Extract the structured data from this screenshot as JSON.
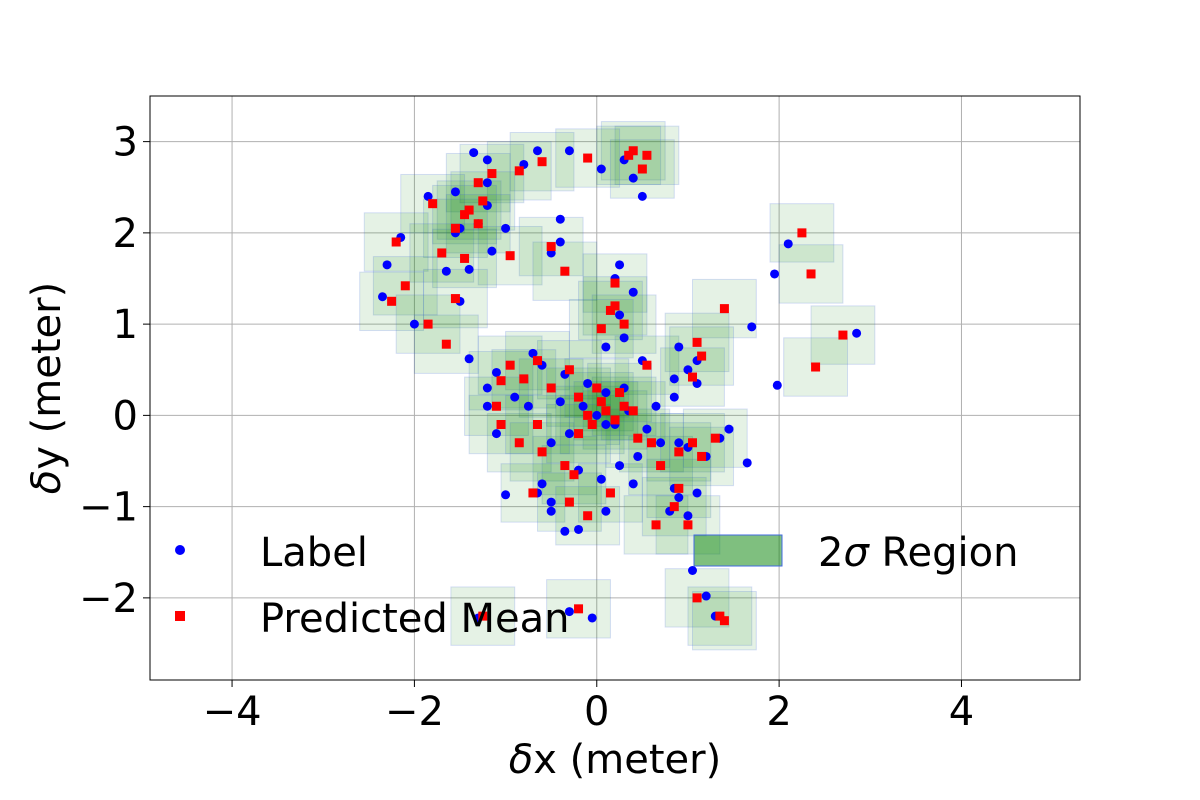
{
  "chart_data": {
    "type": "scatter",
    "xlabel_prefix": "δ",
    "xlabel_text": "x (meter)",
    "ylabel_prefix": "δ",
    "ylabel_text": "y (meter)",
    "xlim": [
      -4.9,
      5.3
    ],
    "ylim": [
      -2.9,
      3.5
    ],
    "xticks": [
      -4,
      -2,
      0,
      2,
      4
    ],
    "yticks": [
      -2,
      -1,
      0,
      1,
      2,
      3
    ],
    "xtick_labels": [
      "−4",
      "−2",
      "0",
      "2",
      "4"
    ],
    "ytick_labels": [
      "−2",
      "−1",
      "0",
      "1",
      "2",
      "3"
    ],
    "grid": true,
    "colors": {
      "label": "#0000ff",
      "mean": "#ff0000",
      "region_fill": "#008000",
      "region_edge": "#4169e1"
    },
    "legend": {
      "label_series": "Label",
      "mean_series": "Predicted Mean",
      "region_prefix": "2",
      "region_sigma": "σ",
      "region_suffix": " Region"
    },
    "region_halfsize": [
      0.35,
      0.32
    ],
    "series": [
      {
        "name": "Label",
        "marker": "circle",
        "points": [
          [
            -0.3,
            2.9
          ],
          [
            -0.65,
            2.9
          ],
          [
            0.05,
            2.7
          ],
          [
            0.4,
            2.6
          ],
          [
            0.5,
            2.4
          ],
          [
            0.3,
            2.8
          ],
          [
            -1.35,
            2.88
          ],
          [
            -1.2,
            2.8
          ],
          [
            -0.8,
            2.75
          ],
          [
            -1.2,
            2.55
          ],
          [
            -1.55,
            2.45
          ],
          [
            -1.85,
            2.4
          ],
          [
            -1.2,
            2.3
          ],
          [
            -1.3,
            2.1
          ],
          [
            -1.5,
            2.05
          ],
          [
            -1.55,
            2.0
          ],
          [
            -2.15,
            1.95
          ],
          [
            -1.15,
            1.8
          ],
          [
            -1.0,
            2.05
          ],
          [
            -0.4,
            2.15
          ],
          [
            -0.4,
            1.9
          ],
          [
            -0.5,
            1.78
          ],
          [
            -2.3,
            1.65
          ],
          [
            -1.65,
            1.58
          ],
          [
            -1.4,
            1.6
          ],
          [
            -2.35,
            1.3
          ],
          [
            -1.5,
            1.25
          ],
          [
            -2.0,
            1.0
          ],
          [
            -1.4,
            0.62
          ],
          [
            0.25,
            1.65
          ],
          [
            0.2,
            1.5
          ],
          [
            0.4,
            1.35
          ],
          [
            0.25,
            1.1
          ],
          [
            0.3,
            0.85
          ],
          [
            0.1,
            0.75
          ],
          [
            0.5,
            0.6
          ],
          [
            1.7,
            0.97
          ],
          [
            1.95,
            1.55
          ],
          [
            2.1,
            1.88
          ],
          [
            2.85,
            0.9
          ],
          [
            1.98,
            0.33
          ],
          [
            0.9,
            0.75
          ],
          [
            1.1,
            0.6
          ],
          [
            1.0,
            0.5
          ],
          [
            1.1,
            0.35
          ],
          [
            0.85,
            0.4
          ],
          [
            -0.7,
            0.68
          ],
          [
            -0.6,
            0.55
          ],
          [
            -0.35,
            0.45
          ],
          [
            -1.1,
            0.47
          ],
          [
            -1.2,
            0.3
          ],
          [
            -1.2,
            0.1
          ],
          [
            -1.1,
            -0.2
          ],
          [
            -0.9,
            0.2
          ],
          [
            -0.75,
            0.1
          ],
          [
            -0.5,
            -0.3
          ],
          [
            -0.3,
            -0.2
          ],
          [
            -0.1,
            0.35
          ],
          [
            0.1,
            0.25
          ],
          [
            0.2,
            -0.1
          ],
          [
            0.35,
            0.05
          ],
          [
            0.55,
            -0.15
          ],
          [
            0.65,
            0.1
          ],
          [
            0.7,
            -0.3
          ],
          [
            0.85,
            0.2
          ],
          [
            0.9,
            -0.3
          ],
          [
            1.0,
            -0.35
          ],
          [
            1.2,
            -0.45
          ],
          [
            1.35,
            -0.25
          ],
          [
            1.45,
            -0.15
          ],
          [
            1.65,
            -0.52
          ],
          [
            -0.2,
            -0.6
          ],
          [
            0.05,
            -0.7
          ],
          [
            0.25,
            -0.55
          ],
          [
            0.4,
            -0.75
          ],
          [
            -0.6,
            -0.75
          ],
          [
            -0.65,
            -0.85
          ],
          [
            -1.0,
            -0.87
          ],
          [
            -0.5,
            -0.95
          ],
          [
            -0.5,
            -1.05
          ],
          [
            -0.35,
            -1.27
          ],
          [
            -0.2,
            -1.25
          ],
          [
            0.1,
            -1.05
          ],
          [
            0.85,
            -0.8
          ],
          [
            0.9,
            -0.9
          ],
          [
            0.8,
            -1.05
          ],
          [
            1.0,
            -1.1
          ],
          [
            1.1,
            -0.85
          ],
          [
            1.05,
            -1.7
          ],
          [
            1.2,
            -1.98
          ],
          [
            1.3,
            -2.2
          ],
          [
            -1.3,
            -2.22
          ],
          [
            -0.3,
            -2.15
          ],
          [
            -0.05,
            -2.22
          ],
          [
            0.0,
            0.0
          ],
          [
            0.1,
            -0.1
          ],
          [
            -0.15,
            0.1
          ],
          [
            -0.4,
            0.15
          ],
          [
            0.3,
            0.3
          ],
          [
            0.45,
            -0.45
          ]
        ]
      },
      {
        "name": "Predicted Mean",
        "marker": "square",
        "points": [
          [
            0.4,
            2.9
          ],
          [
            0.55,
            2.85
          ],
          [
            0.35,
            2.85
          ],
          [
            0.5,
            2.7
          ],
          [
            -0.1,
            2.82
          ],
          [
            -0.6,
            2.78
          ],
          [
            -0.85,
            2.68
          ],
          [
            -1.15,
            2.65
          ],
          [
            -1.3,
            2.55
          ],
          [
            -1.25,
            2.35
          ],
          [
            -1.4,
            2.25
          ],
          [
            -1.8,
            2.32
          ],
          [
            -1.45,
            2.2
          ],
          [
            -1.3,
            2.1
          ],
          [
            -1.55,
            2.05
          ],
          [
            -2.2,
            1.9
          ],
          [
            -1.7,
            1.78
          ],
          [
            -1.45,
            1.72
          ],
          [
            -0.95,
            1.75
          ],
          [
            -0.5,
            1.85
          ],
          [
            -0.35,
            1.58
          ],
          [
            -2.1,
            1.42
          ],
          [
            -2.25,
            1.25
          ],
          [
            -1.55,
            1.28
          ],
          [
            -1.85,
            1.0
          ],
          [
            -1.65,
            0.78
          ],
          [
            0.2,
            1.45
          ],
          [
            0.2,
            1.2
          ],
          [
            0.15,
            1.15
          ],
          [
            0.3,
            1.0
          ],
          [
            0.05,
            0.95
          ],
          [
            0.55,
            0.55
          ],
          [
            1.4,
            1.17
          ],
          [
            2.25,
            2.0
          ],
          [
            2.35,
            1.55
          ],
          [
            2.7,
            0.88
          ],
          [
            2.4,
            0.53
          ],
          [
            1.1,
            0.8
          ],
          [
            1.15,
            0.65
          ],
          [
            1.05,
            0.42
          ],
          [
            -0.65,
            0.6
          ],
          [
            -0.3,
            0.5
          ],
          [
            -0.95,
            0.55
          ],
          [
            -1.05,
            0.38
          ],
          [
            -0.8,
            0.4
          ],
          [
            -0.5,
            0.3
          ],
          [
            -0.2,
            0.2
          ],
          [
            0.05,
            0.15
          ],
          [
            -0.1,
            0.0
          ],
          [
            0.1,
            0.05
          ],
          [
            0.2,
            -0.05
          ],
          [
            -0.05,
            -0.1
          ],
          [
            0.3,
            0.1
          ],
          [
            0.45,
            -0.25
          ],
          [
            0.6,
            -0.3
          ],
          [
            0.7,
            -0.55
          ],
          [
            0.9,
            -0.4
          ],
          [
            1.05,
            -0.3
          ],
          [
            1.15,
            -0.45
          ],
          [
            1.3,
            -0.25
          ],
          [
            -0.85,
            -0.3
          ],
          [
            -1.1,
            0.1
          ],
          [
            -1.05,
            -0.1
          ],
          [
            -0.6,
            -0.4
          ],
          [
            -0.35,
            -0.55
          ],
          [
            -0.25,
            -0.65
          ],
          [
            0.15,
            -0.85
          ],
          [
            -0.7,
            -0.85
          ],
          [
            -0.65,
            -0.1
          ],
          [
            -0.3,
            -0.95
          ],
          [
            -0.1,
            -1.1
          ],
          [
            0.65,
            -1.2
          ],
          [
            0.9,
            -0.8
          ],
          [
            1.0,
            -1.2
          ],
          [
            0.85,
            -1.0
          ],
          [
            1.1,
            -2.0
          ],
          [
            1.35,
            -2.2
          ],
          [
            1.4,
            -2.25
          ],
          [
            -1.25,
            -2.2
          ],
          [
            -0.2,
            -2.12
          ],
          [
            0.0,
            0.3
          ],
          [
            -0.2,
            -0.2
          ],
          [
            0.25,
            0.25
          ],
          [
            0.4,
            0.05
          ]
        ]
      }
    ]
  }
}
